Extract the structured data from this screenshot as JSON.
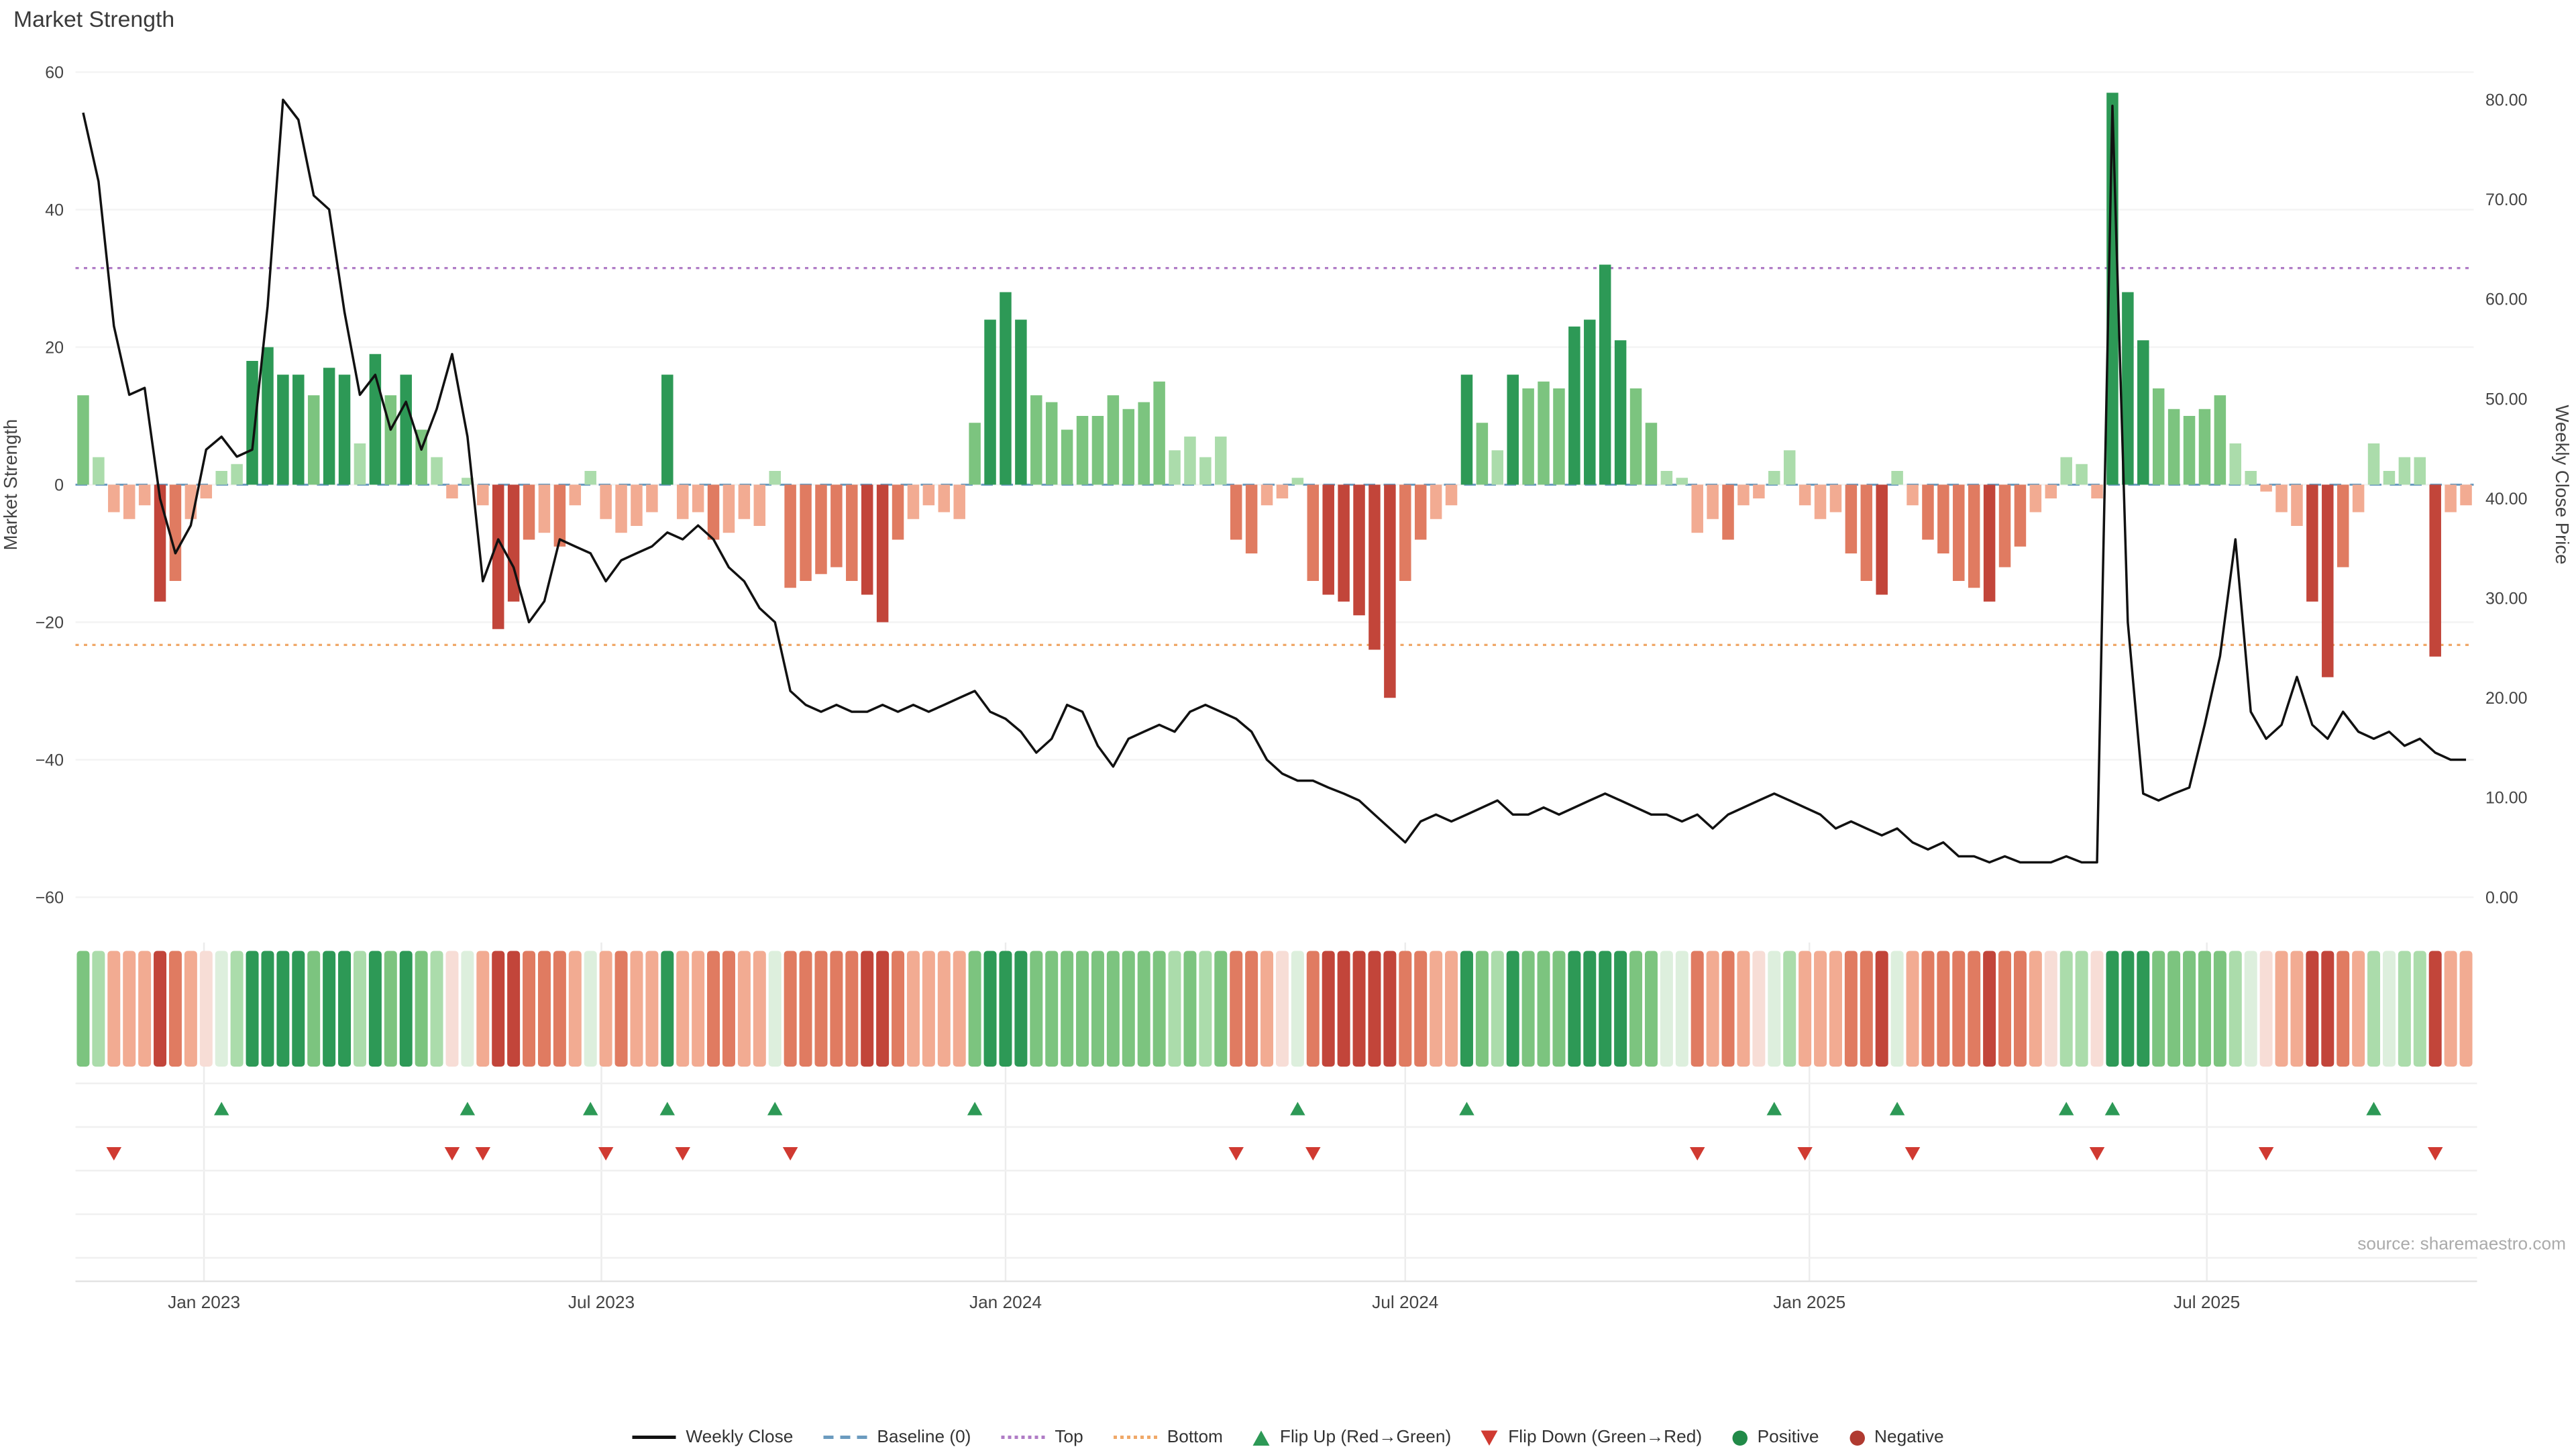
{
  "title": "Market Strength",
  "source": "source: sharemaestro.com",
  "axes": {
    "left_label": "Market Strength",
    "right_label": "Weekly Close Price",
    "left_ticks": [
      {
        "label": "60",
        "v": 60
      },
      {
        "label": "40",
        "v": 40
      },
      {
        "label": "20",
        "v": 20
      },
      {
        "label": "0",
        "v": 0
      },
      {
        "label": "−20",
        "v": -20
      },
      {
        "label": "−40",
        "v": -40
      },
      {
        "label": "−60",
        "v": -60
      }
    ],
    "right_ticks": [
      {
        "label": "80.00",
        "v": 80
      },
      {
        "label": "70.00",
        "v": 70
      },
      {
        "label": "60.00",
        "v": 60
      },
      {
        "label": "50.00",
        "v": 50
      },
      {
        "label": "40.00",
        "v": 40
      },
      {
        "label": "30.00",
        "v": 30
      },
      {
        "label": "20.00",
        "v": 20
      },
      {
        "label": "10.00",
        "v": 10
      },
      {
        "label": "0.00",
        "v": 0
      }
    ],
    "x_ticks": [
      {
        "label": "Jan 2023",
        "week": 7.86
      },
      {
        "label": "Jul 2023",
        "week": 33.71
      },
      {
        "label": "Jan 2024",
        "week": 60.0
      },
      {
        "label": "Jul 2024",
        "week": 86.0
      },
      {
        "label": "Jan 2025",
        "week": 112.29
      },
      {
        "label": "Jul 2025",
        "week": 138.14
      }
    ]
  },
  "colors": {
    "line": "#111111",
    "baseline": "#6b9bbf",
    "top_line": "#b07cc6",
    "bottom_line": "#f0a868",
    "green_dark": "#2d9956",
    "green_mid": "#7cc47f",
    "green_light": "#abdcab",
    "green_pale": "#ddefdd",
    "red_dark": "#c2453a",
    "red_mid": "#e07b61",
    "red_light": "#f2ab92",
    "red_pale": "#f7ddd6",
    "flip_up": "#2d9956",
    "flip_down": "#d03a31",
    "positive_dot": "#218a48",
    "negative_dot": "#b03a30"
  },
  "chart_data": {
    "type": "combo-bar-line-heatmap",
    "title": "Market Strength",
    "x_unit": "week",
    "left_axis": {
      "label": "Market Strength",
      "range": [
        -60,
        60
      ]
    },
    "right_axis": {
      "label": "Weekly Close Price",
      "range": [
        0,
        80
      ]
    },
    "baseline": 0,
    "top": 31.5,
    "bottom": -23.3,
    "grid": "faint",
    "legend_position": "bottom-center",
    "series": [
      {
        "name": "Market Strength",
        "type": "bar",
        "axis": "left",
        "values": [
          13,
          4,
          -4,
          -5,
          -3,
          -17,
          -14,
          -5,
          -2,
          2,
          3,
          18,
          20,
          16,
          16,
          13,
          17,
          16,
          6,
          19,
          13,
          16,
          8,
          4,
          -2,
          1,
          -3,
          -21,
          -17,
          -8,
          -7,
          -9,
          -3,
          2,
          -5,
          -7,
          -6,
          -4,
          16,
          -5,
          -4,
          -8,
          -7,
          -5,
          -6,
          2,
          -15,
          -14,
          -13,
          -12,
          -14,
          -16,
          -20,
          -8,
          -5,
          -3,
          -4,
          -5,
          9,
          24,
          28,
          24,
          13,
          12,
          8,
          10,
          10,
          13,
          11,
          12,
          15,
          5,
          7,
          4,
          7,
          -8,
          -10,
          -3,
          -2,
          1,
          -14,
          -16,
          -17,
          -19,
          -24,
          -31,
          -14,
          -8,
          -5,
          -3,
          16,
          9,
          5,
          16,
          14,
          15,
          14,
          23,
          24,
          32,
          21,
          14,
          9,
          2,
          1,
          -7,
          -5,
          -8,
          -3,
          -2,
          2,
          5,
          -3,
          -5,
          -4,
          -10,
          -14,
          -16,
          2,
          -3,
          -8,
          -10,
          -14,
          -15,
          -17,
          -12,
          -9,
          -4,
          -2,
          4,
          3,
          -2,
          57,
          28,
          21,
          14,
          11,
          10,
          11,
          13,
          6,
          2,
          -1,
          -4,
          -6,
          -17,
          -28,
          -12,
          -4,
          6,
          2,
          4,
          4,
          -25,
          -4,
          -3
        ]
      },
      {
        "name": "Weekly Close",
        "type": "line",
        "axis": "right",
        "values": [
          78.7,
          71.8,
          57.3,
          50.4,
          51.1,
          40.0,
          34.5,
          37.3,
          44.9,
          46.2,
          44.2,
          44.9,
          59.3,
          80.0,
          78.0,
          70.4,
          69.0,
          58.7,
          50.4,
          52.4,
          46.9,
          49.7,
          44.9,
          49.0,
          54.5,
          46.2,
          31.7,
          35.9,
          33.1,
          27.6,
          29.7,
          35.9,
          35.2,
          34.5,
          31.7,
          33.8,
          34.5,
          35.2,
          36.6,
          35.9,
          37.3,
          35.9,
          33.1,
          31.7,
          29.0,
          27.6,
          20.7,
          19.3,
          18.6,
          19.3,
          18.6,
          18.6,
          19.3,
          18.6,
          19.3,
          18.6,
          19.3,
          20.0,
          20.7,
          18.6,
          17.9,
          16.6,
          14.5,
          15.9,
          19.3,
          18.6,
          15.2,
          13.1,
          15.9,
          16.6,
          17.3,
          16.6,
          18.6,
          19.3,
          18.6,
          17.9,
          16.6,
          13.8,
          12.4,
          11.7,
          11.7,
          11.0,
          10.4,
          9.7,
          8.3,
          6.9,
          5.5,
          7.6,
          8.3,
          7.6,
          8.3,
          9.0,
          9.7,
          8.3,
          8.3,
          9.0,
          8.3,
          9.0,
          9.7,
          10.4,
          9.7,
          9.0,
          8.3,
          8.3,
          7.6,
          8.3,
          6.9,
          8.3,
          9.0,
          9.7,
          10.4,
          9.7,
          9.0,
          8.3,
          6.9,
          7.6,
          6.9,
          6.2,
          6.9,
          5.5,
          4.8,
          5.5,
          4.1,
          4.1,
          3.5,
          4.1,
          3.5,
          3.5,
          3.5,
          4.1,
          3.5,
          3.5,
          79.4,
          27.6,
          10.4,
          9.7,
          10.4,
          11.0,
          17.3,
          24.2,
          35.9,
          18.6,
          15.9,
          17.3,
          22.1,
          17.3,
          15.9,
          18.6,
          16.6,
          15.9,
          16.6,
          15.2,
          15.9,
          14.5,
          13.8,
          13.8
        ]
      }
    ],
    "heatmap": "one cell per week, colored by Market Strength sign and intensity",
    "flip_rule": "up marker where strength crosses negative to positive, down marker where positive to negative"
  },
  "legend": {
    "items": [
      {
        "label": "Weekly Close",
        "swatch": "line",
        "color": "#111111"
      },
      {
        "label": "Baseline (0)",
        "swatch": "dash",
        "color": "#6b9bbf"
      },
      {
        "label": "Top",
        "swatch": "dot",
        "color": "#b07cc6"
      },
      {
        "label": "Bottom",
        "swatch": "dot",
        "color": "#f0a868"
      },
      {
        "label": "Flip Up (Red→Green)",
        "swatch": "tri-up",
        "color": "#2d9956"
      },
      {
        "label": "Flip Down (Green→Red)",
        "swatch": "tri-down",
        "color": "#d03a31"
      },
      {
        "label": "Positive",
        "swatch": "circle",
        "color": "#218a48"
      },
      {
        "label": "Negative",
        "swatch": "circle",
        "color": "#b03a30"
      }
    ]
  }
}
